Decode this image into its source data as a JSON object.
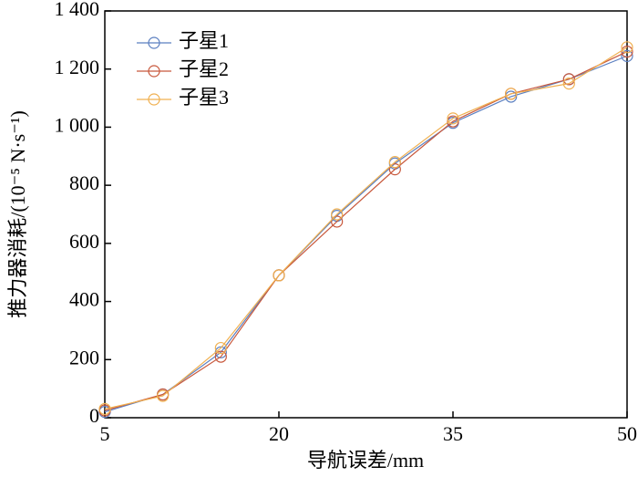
{
  "chart_data": {
    "type": "line",
    "xlabel": "导航误差/mm",
    "ylabel": "推力器消耗/(10⁻⁵ N·s⁻¹)",
    "x": [
      5,
      10,
      15,
      20,
      25,
      30,
      35,
      40,
      45,
      50
    ],
    "series": [
      {
        "name": "子星1",
        "color": "#5b7fc0",
        "values": [
          20,
          80,
          225,
          490,
          695,
          875,
          1015,
          1105,
          1165,
          1245
        ]
      },
      {
        "name": "子星2",
        "color": "#c8583c",
        "values": [
          25,
          80,
          210,
          490,
          675,
          855,
          1020,
          1115,
          1165,
          1260
        ]
      },
      {
        "name": "子星3",
        "color": "#f0b050",
        "values": [
          30,
          75,
          240,
          490,
          700,
          880,
          1030,
          1115,
          1150,
          1275
        ]
      }
    ],
    "xlim": [
      5,
      50
    ],
    "xticks": [
      5,
      20,
      35,
      50
    ],
    "ylim": [
      0,
      1400
    ],
    "yticks": [
      0,
      200,
      400,
      600,
      800,
      {
        "value": 1000,
        "label": "1 000"
      },
      {
        "value": 1200,
        "label": "1 200"
      },
      {
        "value": 1400,
        "label": "1 400"
      }
    ],
    "legend": "upper left",
    "grid": false
  }
}
